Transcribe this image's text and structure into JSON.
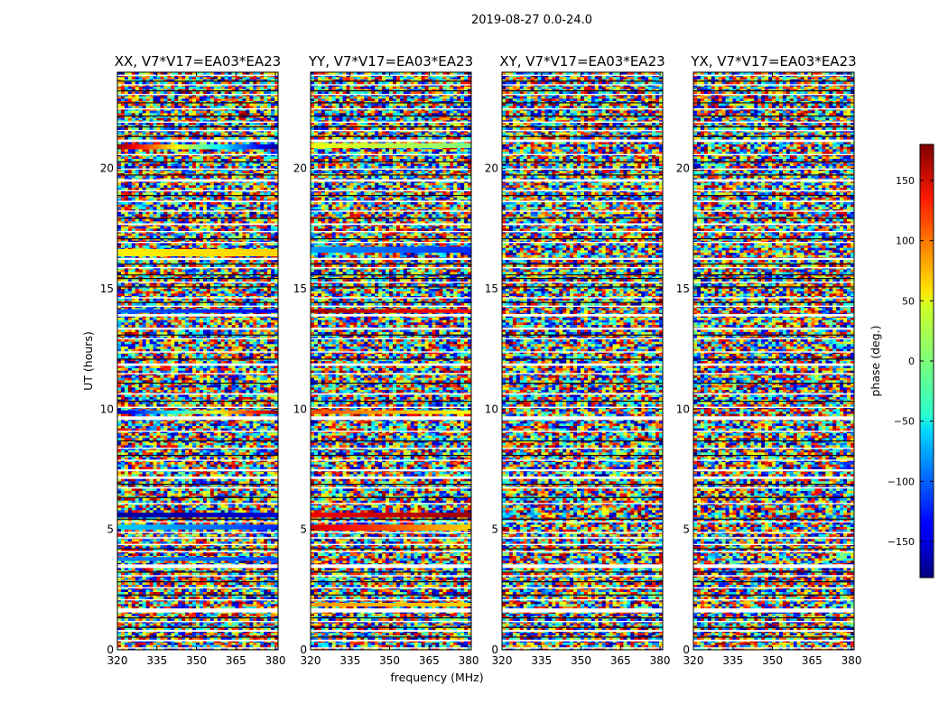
{
  "chart_data": {
    "type": "heatmap",
    "suptitle": "2019-08-27 0.0-24.0",
    "xlabel": "frequency (MHz)",
    "ylabel": "UT (hours)",
    "xlim": [
      320,
      381
    ],
    "ylim": [
      0,
      24
    ],
    "x_ticks": [
      "320",
      "335",
      "350",
      "365",
      "380"
    ],
    "x_tick_values": [
      320,
      335,
      350,
      365,
      380
    ],
    "y_ticks": [
      "0",
      "5",
      "10",
      "15",
      "20"
    ],
    "y_tick_values": [
      0,
      5,
      10,
      15,
      20
    ],
    "colormap": "jet",
    "colorbar": {
      "label": "phase (deg.)",
      "range": [
        -180,
        180
      ],
      "ticks": [
        "150",
        "100",
        "50",
        "0",
        "−50",
        "−100",
        "−150"
      ],
      "tick_values": [
        150,
        100,
        50,
        0,
        -50,
        -100,
        -150
      ]
    },
    "panels": [
      {
        "title": "XX, V7*V17=EA03*EA23",
        "coherent_bands": [
          {
            "ut": [
              20.8,
              21.0
            ],
            "phase_start": 170,
            "phase_end": -170
          },
          {
            "ut": [
              16.35,
              16.65
            ],
            "phase_start": 50,
            "phase_end": 60
          },
          {
            "ut": [
              14.0,
              14.15
            ],
            "phase_start": -100,
            "phase_end": -140
          },
          {
            "ut": [
              9.8,
              9.95
            ],
            "phase_start": -160,
            "phase_end": 170
          },
          {
            "ut": [
              5.5,
              5.7
            ],
            "phase_start": -170,
            "phase_end": -150
          },
          {
            "ut": [
              5.0,
              5.2
            ],
            "phase_start": -60,
            "phase_end": -120
          },
          {
            "ut": [
              3.7,
              3.85
            ],
            "phase_start": -90,
            "phase_end": -110
          }
        ]
      },
      {
        "title": "YY, V7*V17=EA03*EA23",
        "coherent_bands": [
          {
            "ut": [
              20.85,
              21.05
            ],
            "phase_start": 40,
            "phase_end": 0
          },
          {
            "ut": [
              16.5,
              16.75
            ],
            "phase_start": -80,
            "phase_end": -120
          },
          {
            "ut": [
              14.0,
              14.15
            ],
            "phase_start": 170,
            "phase_end": 130
          },
          {
            "ut": [
              9.8,
              9.95
            ],
            "phase_start": 110,
            "phase_end": 40
          },
          {
            "ut": [
              5.5,
              5.7
            ],
            "phase_start": 140,
            "phase_end": 170
          },
          {
            "ut": [
              4.95,
              5.2
            ],
            "phase_start": 150,
            "phase_end": 60
          },
          {
            "ut": [
              1.8,
              1.95
            ],
            "phase_start": 80,
            "phase_end": 60
          }
        ]
      },
      {
        "title": "XY, V7*V17=EA03*EA23",
        "coherent_bands": []
      },
      {
        "title": "YX, V7*V17=EA03*EA23",
        "coherent_bands": []
      }
    ]
  }
}
